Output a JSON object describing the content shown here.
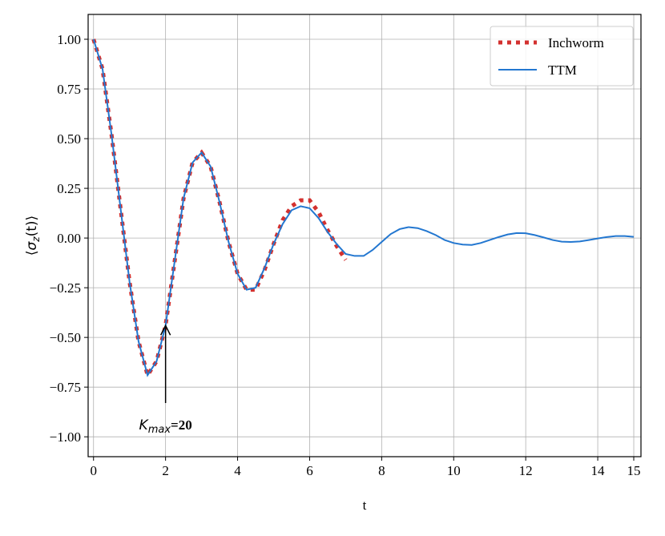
{
  "chart_data": {
    "type": "line",
    "xlabel": "t",
    "ylabel": {
      "open": "⟨",
      "symbol": "σ",
      "sub": "z",
      "rest": "(t)⟩"
    },
    "xlim": [
      -0.15,
      15.2
    ],
    "ylim": [
      -1.1,
      1.125
    ],
    "xticks": [
      0,
      2,
      4,
      6,
      8,
      10,
      12,
      14,
      15
    ],
    "yticks": [
      {
        "value": -1,
        "label": "−1.00"
      },
      {
        "value": -0.75,
        "label": "−0.75"
      },
      {
        "value": -0.5,
        "label": "−0.50"
      },
      {
        "value": -0.25,
        "label": "−0.25"
      },
      {
        "value": 0,
        "label": "0.00"
      },
      {
        "value": 0.25,
        "label": "0.25"
      },
      {
        "value": 0.5,
        "label": "0.50"
      },
      {
        "value": 0.75,
        "label": "0.75"
      },
      {
        "value": 1,
        "label": "1.00"
      }
    ],
    "grid": true,
    "legend": "upper right",
    "series": [
      {
        "name": "Inchworm",
        "color": "#d3312f",
        "style": "dotted",
        "x": [
          0,
          0.25,
          0.5,
          0.75,
          1,
          1.25,
          1.5,
          1.75,
          2,
          2.25,
          2.5,
          2.75,
          3,
          3.25,
          3.5,
          3.75,
          4,
          4.25,
          4.5,
          4.75,
          5,
          5.25,
          5.5,
          5.75,
          6,
          6.25,
          6.5,
          6.75,
          7
        ],
        "values": [
          1.0,
          0.85,
          0.52,
          0.15,
          -0.22,
          -0.52,
          -0.69,
          -0.62,
          -0.44,
          -0.12,
          0.2,
          0.38,
          0.43,
          0.36,
          0.18,
          -0.02,
          -0.18,
          -0.26,
          -0.26,
          -0.16,
          -0.03,
          0.09,
          0.16,
          0.19,
          0.19,
          0.13,
          0.04,
          -0.04,
          -0.11
        ]
      },
      {
        "name": "TTM",
        "color": "#2377d0",
        "style": "solid",
        "x": [
          0,
          0.25,
          0.5,
          0.75,
          1,
          1.25,
          1.5,
          1.75,
          2,
          2.25,
          2.5,
          2.75,
          3,
          3.25,
          3.5,
          3.75,
          4,
          4.25,
          4.5,
          4.75,
          5,
          5.25,
          5.5,
          5.75,
          6,
          6.25,
          6.5,
          6.75,
          7,
          7.25,
          7.5,
          7.75,
          8,
          8.25,
          8.5,
          8.75,
          9,
          9.25,
          9.5,
          9.75,
          10,
          10.25,
          10.5,
          10.75,
          11,
          11.25,
          11.5,
          11.75,
          12,
          12.25,
          12.5,
          12.75,
          13,
          13.25,
          13.5,
          13.75,
          14,
          14.25,
          14.5,
          14.75,
          15
        ],
        "values": [
          1.0,
          0.85,
          0.52,
          0.15,
          -0.22,
          -0.52,
          -0.69,
          -0.62,
          -0.44,
          -0.12,
          0.2,
          0.38,
          0.43,
          0.36,
          0.18,
          -0.02,
          -0.18,
          -0.26,
          -0.25,
          -0.15,
          -0.03,
          0.07,
          0.14,
          0.16,
          0.15,
          0.1,
          0.03,
          -0.03,
          -0.08,
          -0.09,
          -0.09,
          -0.06,
          -0.02,
          0.02,
          0.045,
          0.055,
          0.05,
          0.035,
          0.015,
          -0.01,
          -0.025,
          -0.033,
          -0.035,
          -0.025,
          -0.01,
          0.005,
          0.018,
          0.025,
          0.024,
          0.015,
          0.003,
          -0.01,
          -0.018,
          -0.02,
          -0.017,
          -0.01,
          -0.002,
          0.005,
          0.01,
          0.01,
          0.006
        ]
      }
    ],
    "annotation": {
      "symbol": "K",
      "sub": "max",
      "text": "=20",
      "xy": [
        2,
        -0.44
      ],
      "xytext": [
        2,
        -0.83
      ]
    }
  }
}
